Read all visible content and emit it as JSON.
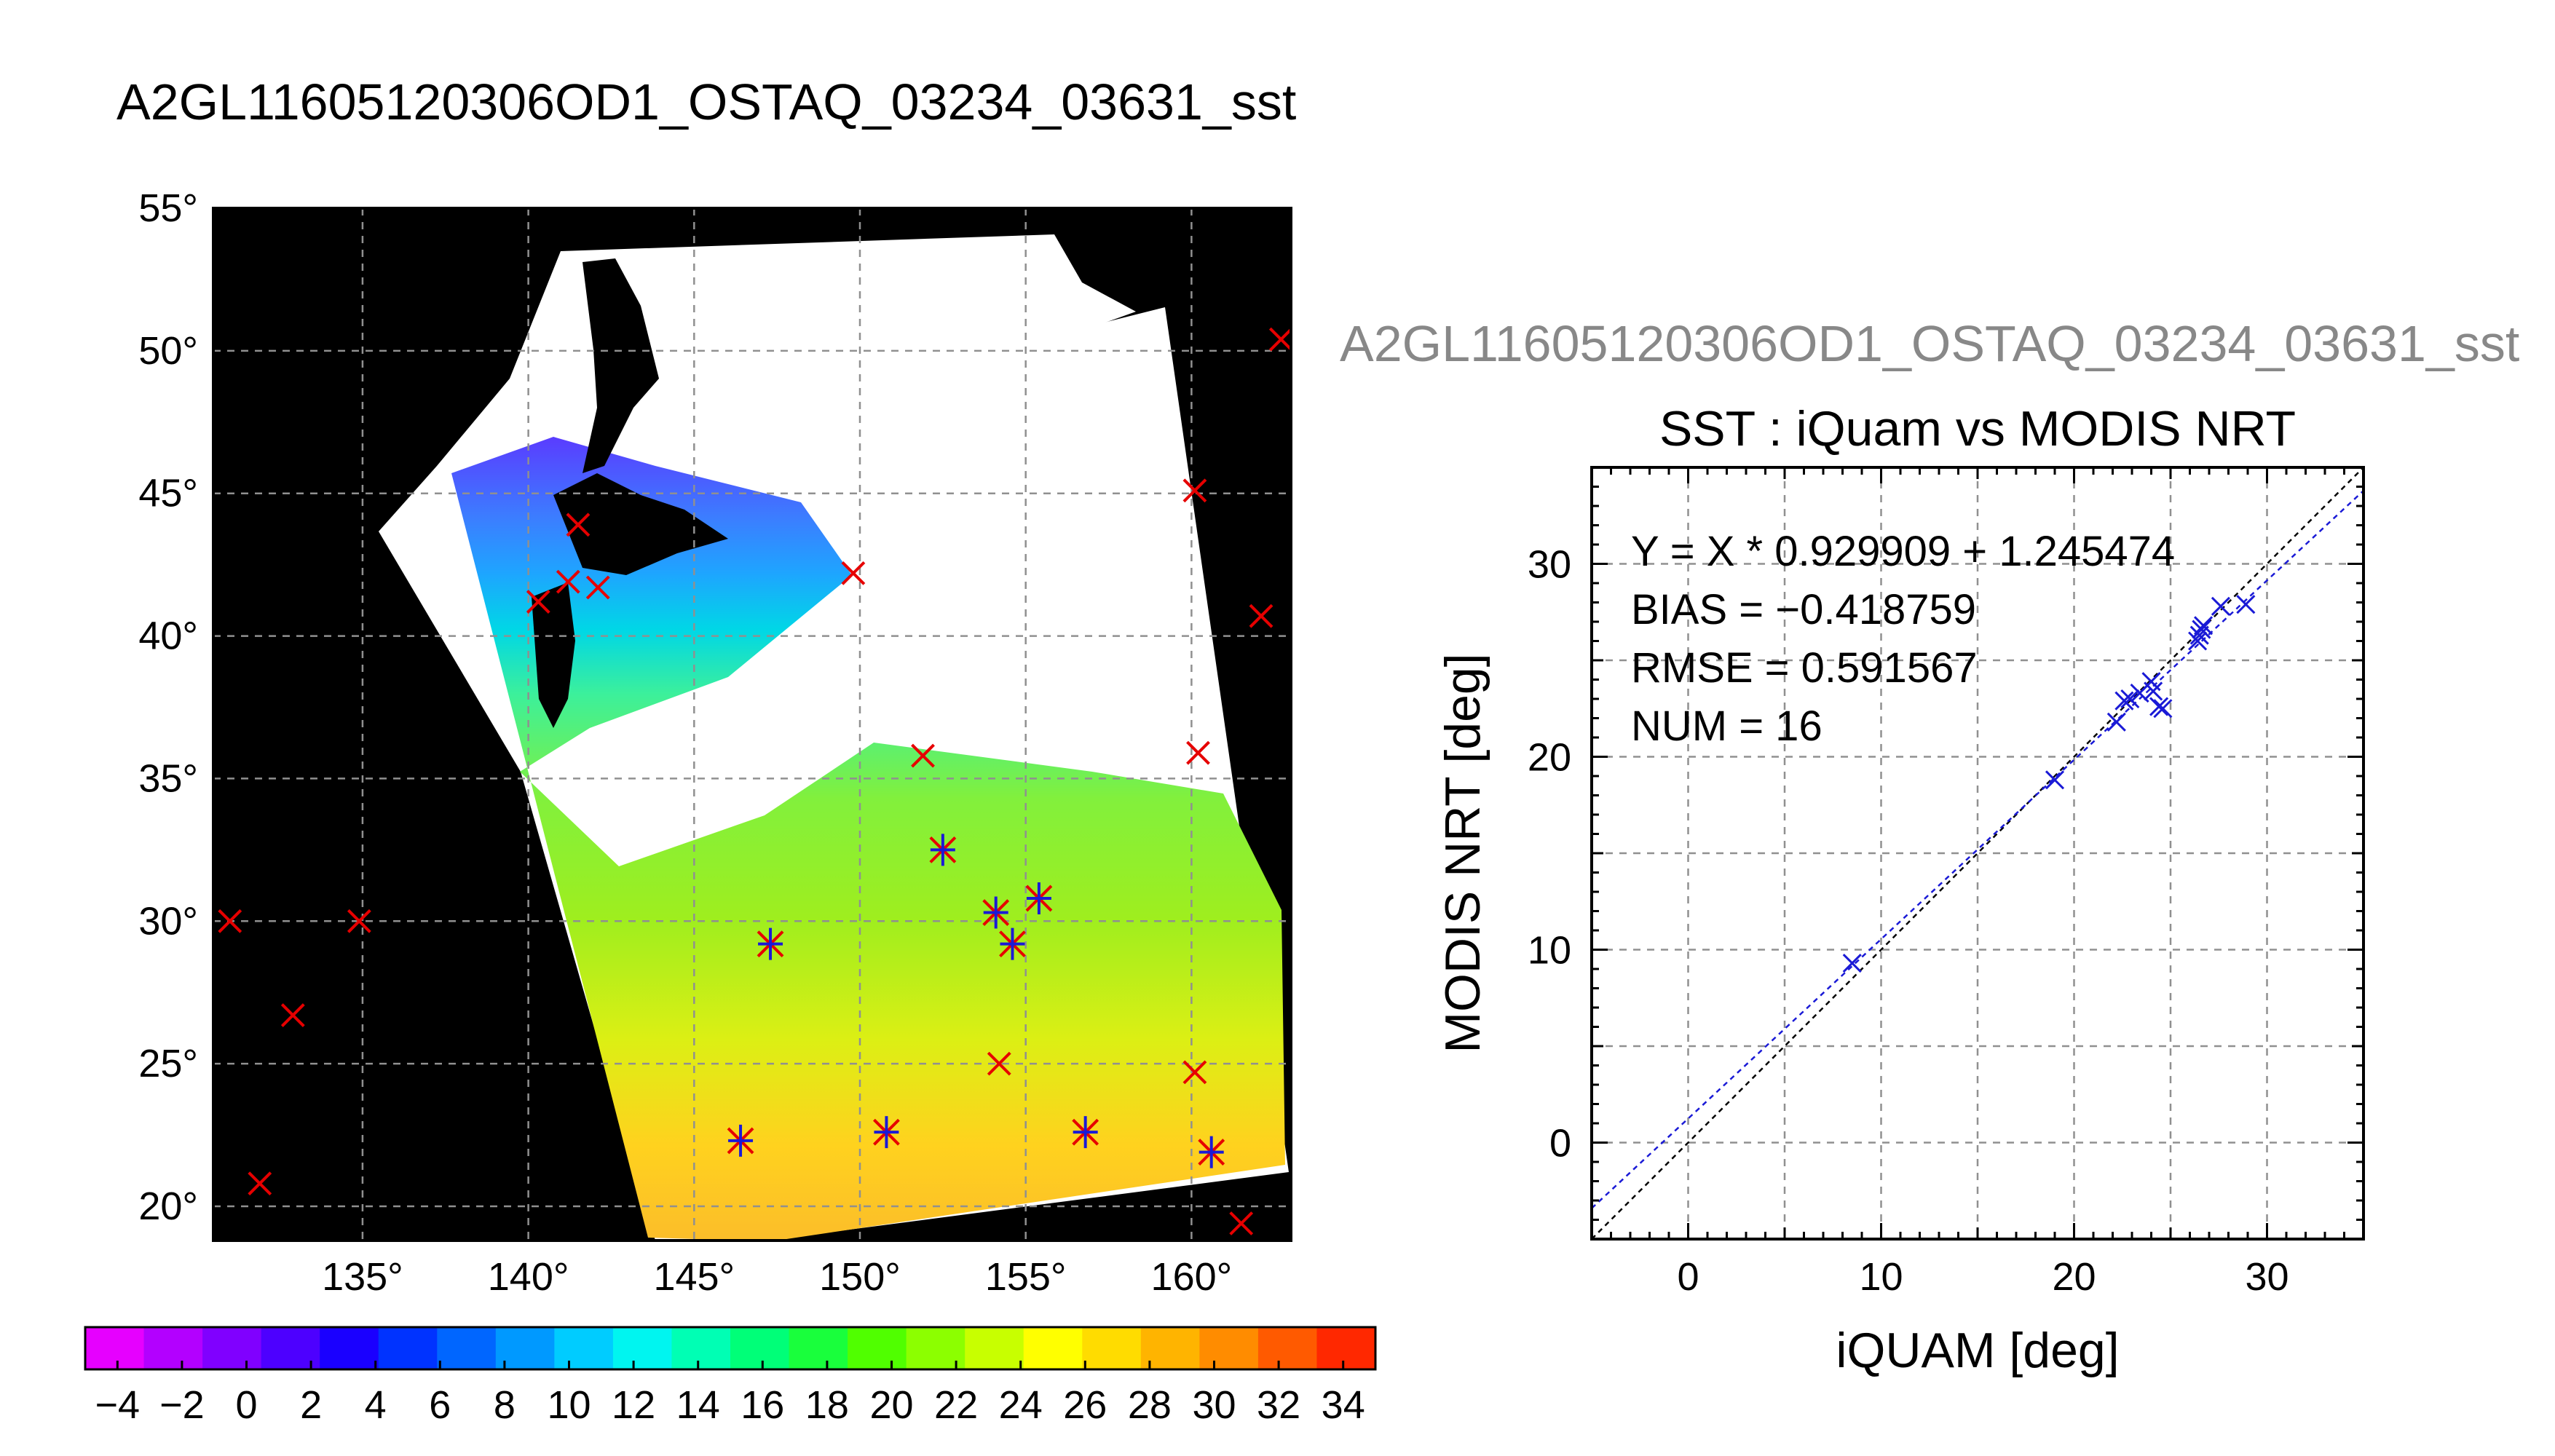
{
  "title": "A2GL11605120306OD1_OSTAQ_03234_03631_sst",
  "scatter_header": "A2GL11605120306OD1_OSTAQ_03234_03631_sst",
  "colors": {
    "match_marker": "#1a1ad6",
    "other_marker": "#e60000",
    "one_to_one_line": "#000000",
    "regression_line": "#1a1ad6"
  },
  "chart_data": [
    {
      "type": "heatmap",
      "title": "",
      "xlabel": "",
      "ylabel": "",
      "xlim": [
        130.5,
        163
      ],
      "ylim": [
        18.8,
        55
      ],
      "x_ticks": [
        {
          "value": 135,
          "label": "135°"
        },
        {
          "value": 140,
          "label": "140°"
        },
        {
          "value": 145,
          "label": "145°"
        },
        {
          "value": 150,
          "label": "150°"
        },
        {
          "value": 155,
          "label": "155°"
        },
        {
          "value": 160,
          "label": "160°"
        }
      ],
      "y_ticks": [
        {
          "value": 20,
          "label": "20°"
        },
        {
          "value": 25,
          "label": "25°"
        },
        {
          "value": 30,
          "label": "30°"
        },
        {
          "value": 35,
          "label": "35°"
        },
        {
          "value": 40,
          "label": "40°"
        },
        {
          "value": 45,
          "label": "45°"
        },
        {
          "value": 50,
          "label": "50°"
        },
        {
          "value": 55,
          "label": "55°"
        }
      ],
      "grid": true,
      "colorbar": {
        "range": [
          -5,
          35
        ],
        "tick_labels": [
          "−4",
          "−2",
          "0",
          "2",
          "4",
          "6",
          "8",
          "10",
          "12",
          "14",
          "16",
          "18",
          "20",
          "22",
          "24",
          "26",
          "28",
          "30",
          "32",
          "34"
        ],
        "tick_values": [
          -4,
          -2,
          0,
          2,
          4,
          6,
          8,
          10,
          12,
          14,
          16,
          18,
          20,
          22,
          24,
          26,
          28,
          30,
          32,
          34
        ],
        "colors": [
          "#e600ff",
          "#b300ff",
          "#8000ff",
          "#4d00ff",
          "#1a00ff",
          "#0033ff",
          "#0066ff",
          "#0099ff",
          "#00ccff",
          "#00f5f0",
          "#00ffb4",
          "#00ff78",
          "#19ff3c",
          "#50ff00",
          "#8cff00",
          "#c8ff00",
          "#ffff00",
          "#ffdc00",
          "#ffb400",
          "#ff8c00",
          "#ff5a00",
          "#ff2800"
        ]
      },
      "insitu_points_matched": [
        [
          147.3,
          29.2
        ],
        [
          152.5,
          32.5
        ],
        [
          154.1,
          30.3
        ],
        [
          154.6,
          29.2
        ],
        [
          155.4,
          30.8
        ],
        [
          146.4,
          22.3
        ],
        [
          150.8,
          22.6
        ],
        [
          156.8,
          22.6
        ],
        [
          160.6,
          21.9
        ]
      ],
      "insitu_points_unmatched": [
        [
          162.7,
          50.4
        ],
        [
          160.1,
          45.1
        ],
        [
          162.1,
          40.7
        ],
        [
          141.5,
          43.9
        ],
        [
          140.3,
          41.2
        ],
        [
          141.2,
          41.9
        ],
        [
          142.1,
          41.7
        ],
        [
          149.8,
          42.2
        ],
        [
          151.9,
          35.8
        ],
        [
          160.2,
          35.9
        ],
        [
          131.0,
          30.0
        ],
        [
          134.9,
          30.0
        ],
        [
          132.9,
          26.7
        ],
        [
          154.2,
          25.0
        ],
        [
          160.1,
          24.7
        ],
        [
          131.9,
          20.8
        ],
        [
          161.5,
          19.4
        ]
      ]
    },
    {
      "type": "scatter",
      "title": "SST : iQuam vs MODIS NRT",
      "xlabel": "iQUAM [deg]",
      "ylabel": "MODIS NRT [deg]",
      "xlim": [
        -5,
        35
      ],
      "ylim": [
        -5,
        35
      ],
      "x_ticks": [
        0,
        10,
        20,
        30
      ],
      "y_ticks": [
        0,
        10,
        20,
        30
      ],
      "grid": true,
      "annotations": [
        "Y = X * 0.929909 + 1.245474",
        "BIAS = −0.418759",
        "RMSE = 0.591567",
        "NUM = 16"
      ],
      "regression": {
        "slope": 0.929909,
        "intercept": 1.245474
      },
      "series": [
        {
          "x": [
            8.5,
            19.0,
            22.2,
            22.6,
            22.9,
            23.4,
            24.0,
            24.1,
            24.4,
            24.6,
            26.4,
            26.5,
            26.6,
            26.7,
            27.6,
            28.9
          ],
          "y": [
            9.3,
            18.8,
            21.8,
            22.9,
            23.0,
            23.3,
            23.9,
            23.4,
            22.6,
            22.5,
            26.0,
            26.3,
            26.6,
            26.8,
            27.8,
            27.9
          ]
        }
      ]
    }
  ]
}
